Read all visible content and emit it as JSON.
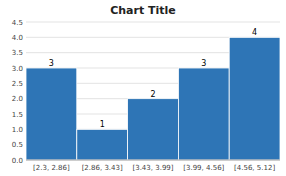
{
  "chart_data": {
    "type": "bar",
    "title": "Chart Title",
    "categories": [
      "[2.3, 2.86]",
      "[2.86, 3.43]",
      "[3.43, 3.99]",
      "[3.99, 4.56]",
      "[4.56, 5.12]"
    ],
    "values": [
      3,
      1,
      2,
      3,
      4
    ],
    "color": "#2E75B6",
    "ylim": [
      0,
      4.5
    ],
    "yticks": [
      {
        "value": 0,
        "label": "0.0"
      },
      0.5,
      {
        "value": 1.0,
        "label": "1.0"
      },
      1.5,
      {
        "value": 2.0,
        "label": "2.0"
      },
      2.5,
      {
        "value": 3.0,
        "label": "3.0"
      },
      3.5,
      {
        "value": 4.0,
        "label": "4.0"
      },
      4.5
    ],
    "grid": true,
    "data_labels": true
  }
}
